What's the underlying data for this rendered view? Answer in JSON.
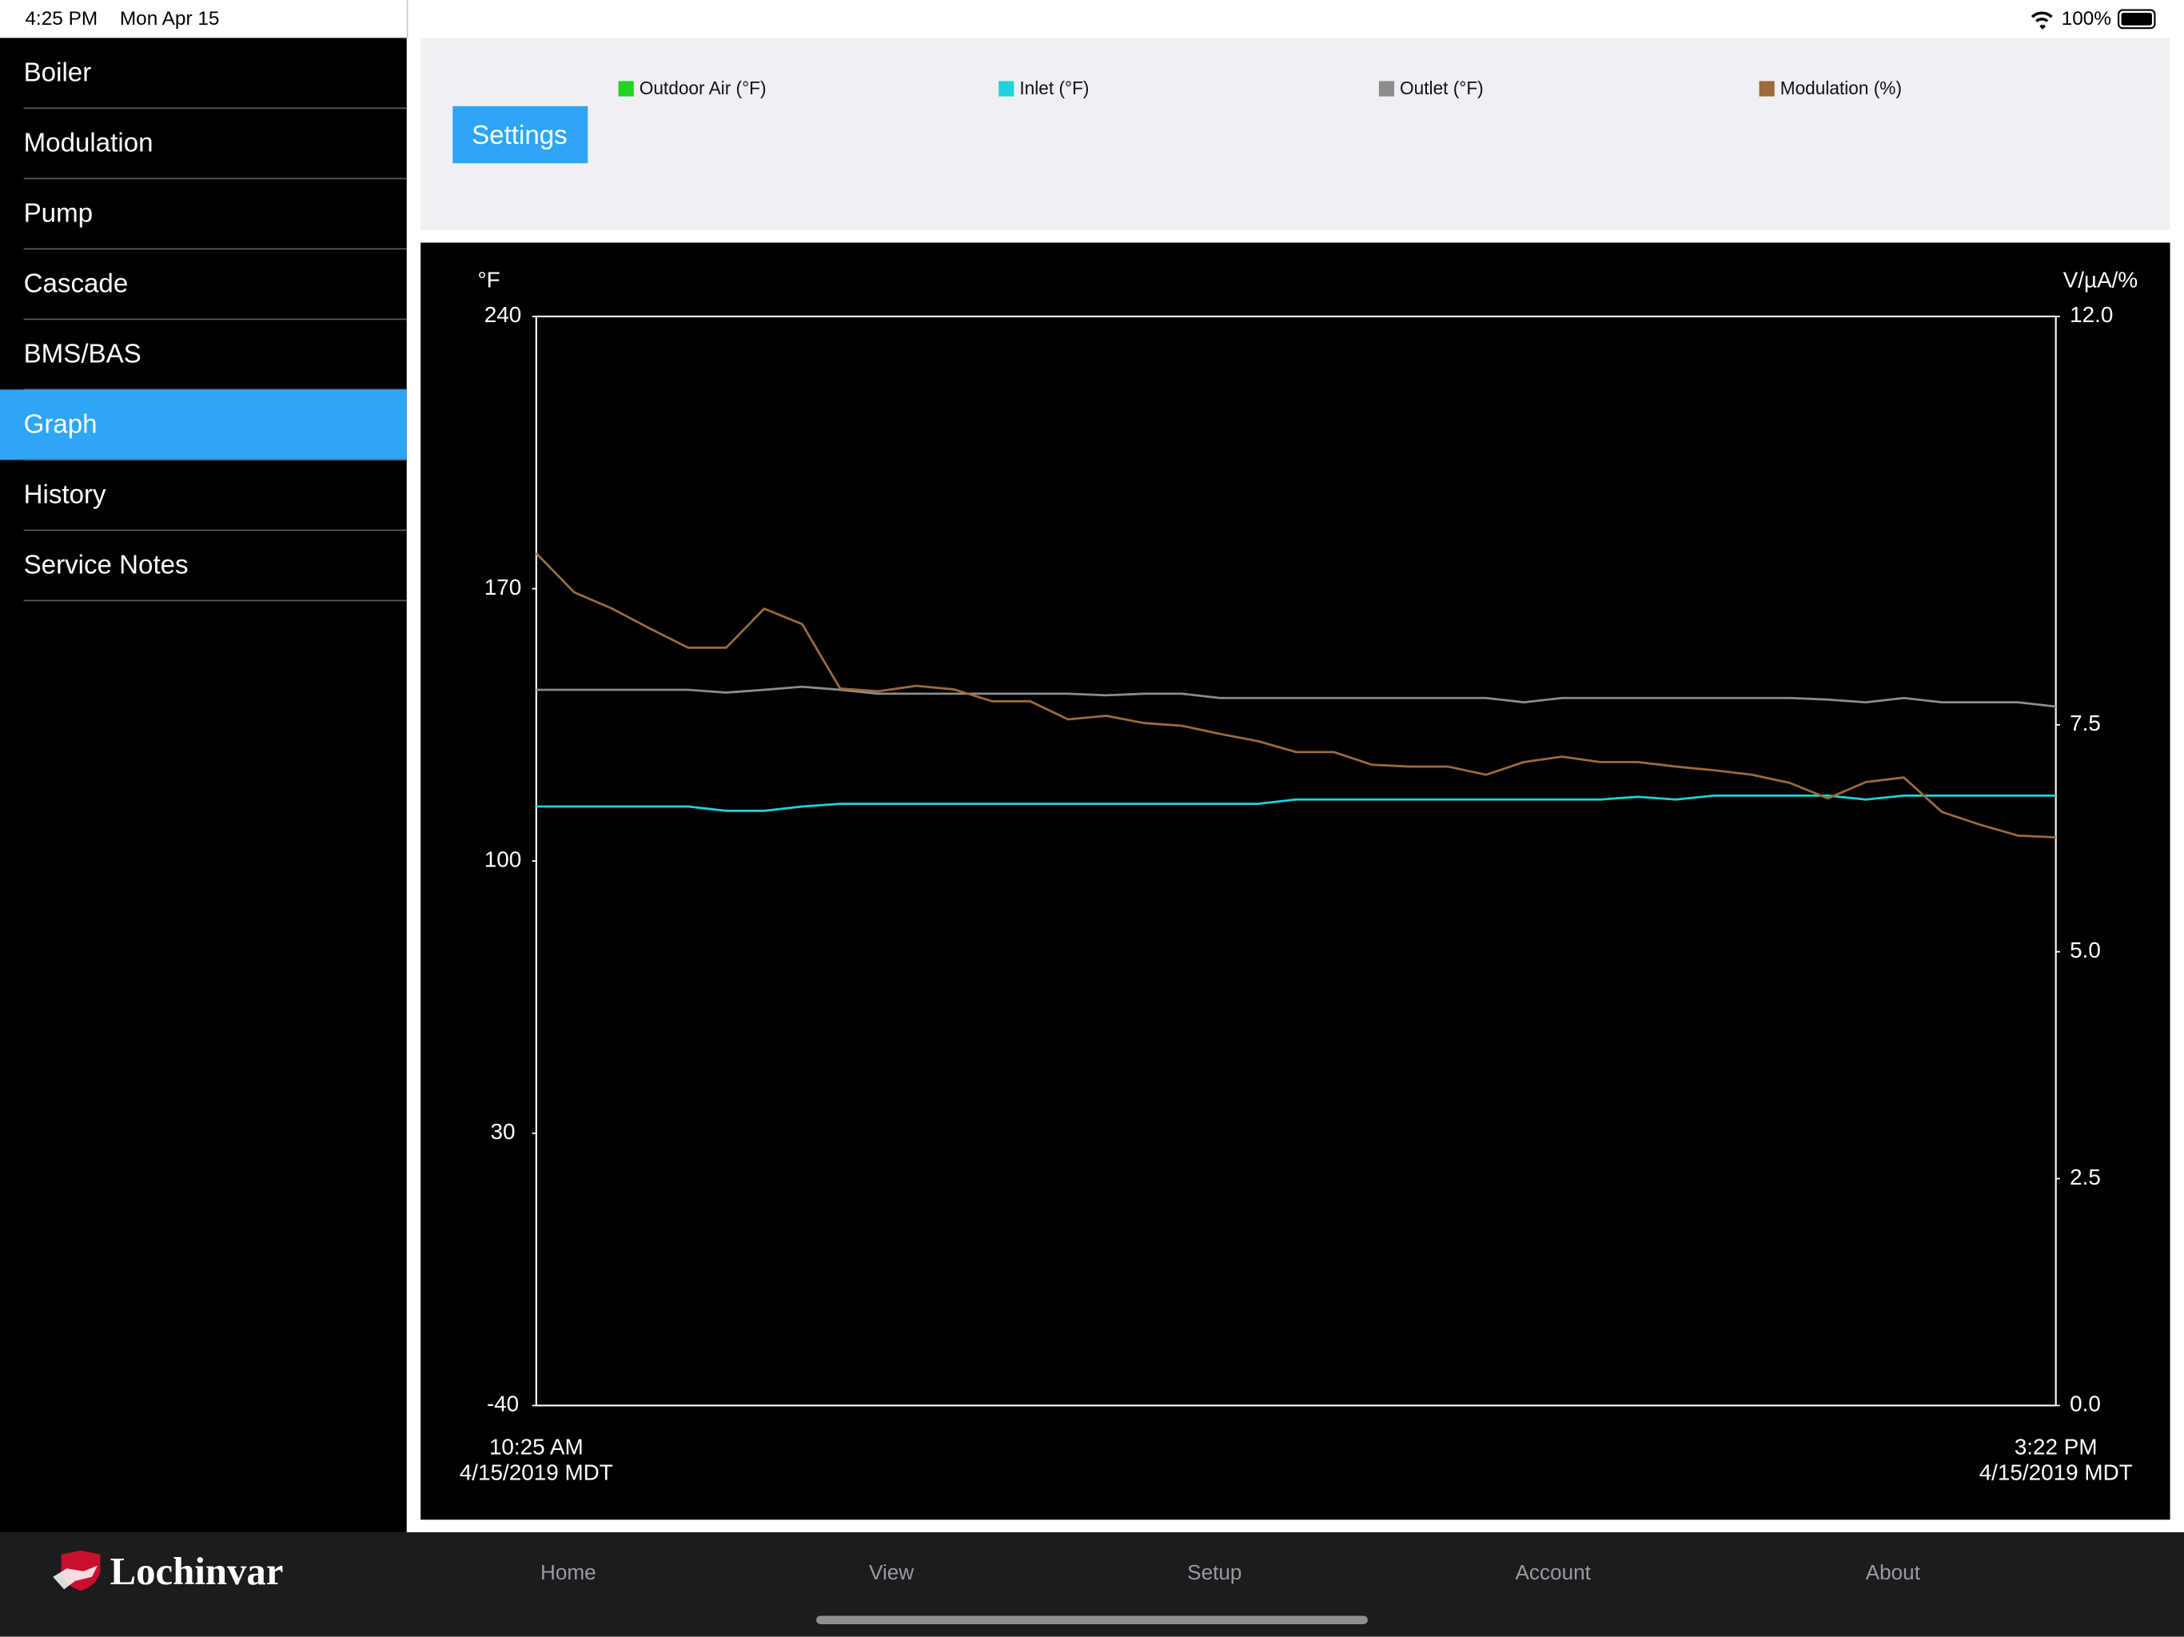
{
  "status_bar": {
    "time": "4:25 PM",
    "date": "Mon Apr 15",
    "battery": "100%"
  },
  "sidebar": {
    "items": [
      "Boiler",
      "Modulation",
      "Pump",
      "Cascade",
      "BMS/BAS",
      "Graph",
      "History",
      "Service Notes"
    ]
  },
  "settings_button": "Settings",
  "chart_data": {
    "type": "line",
    "y_label": "°F",
    "y2_label": "V/µA/%",
    "categories": [
      "10:25 AM\n4/15/2019 MDT",
      null,
      null,
      null,
      null,
      null,
      null,
      null,
      null,
      null,
      null,
      null,
      null,
      null,
      null,
      null,
      null,
      null,
      null,
      null,
      null,
      null,
      null,
      null,
      null,
      null,
      null,
      null,
      null,
      null,
      null,
      null,
      null,
      null,
      null,
      null,
      null,
      null,
      null,
      null,
      "3:22 PM\n4/15/2019 MDT"
    ],
    "ylim": [
      -40,
      240
    ],
    "yticks": [
      240,
      170,
      100,
      30,
      -40
    ],
    "y2lim": [
      0,
      12
    ],
    "y2ticks": [
      {
        "value": 12,
        "label": "12.0"
      },
      7.5,
      {
        "value": 5,
        "label": "5.0"
      },
      2.5,
      {
        "value": 0,
        "label": "0.0"
      }
    ],
    "series": [
      {
        "name": "Outdoor Air (°F)",
        "color": "#22d422",
        "values": [
          null,
          null,
          null,
          null,
          null,
          null,
          null,
          null,
          null,
          null,
          null,
          null,
          null,
          null,
          null,
          null,
          null,
          null,
          null,
          null,
          null,
          null,
          null,
          null,
          null,
          null,
          null,
          null,
          null,
          null,
          null,
          null,
          null,
          null,
          null,
          null,
          null,
          null,
          null,
          null,
          null
        ]
      },
      {
        "name": "Inlet (°F)",
        "color": "#1fd3dc",
        "values": [
          114.0,
          114.0,
          114.0,
          114.0,
          114.0,
          112.9,
          112.9,
          114.0,
          114.7,
          114.7,
          114.7,
          114.7,
          114.7,
          114.7,
          114.7,
          114.7,
          114.7,
          114.7,
          114.7,
          114.7,
          115.8,
          115.8,
          115.8,
          115.8,
          115.8,
          115.8,
          115.8,
          115.8,
          115.8,
          116.5,
          115.8,
          116.8,
          116.8,
          116.8,
          116.8,
          115.8,
          116.8,
          116.8,
          116.8,
          116.8,
          116.8
        ]
      },
      {
        "name": "Outlet (°F)",
        "color": "#8c8c8c",
        "values": [
          144.0,
          144.0,
          144.0,
          144.0,
          144.0,
          143.3,
          144.0,
          144.8,
          144.0,
          143.0,
          143.0,
          143.0,
          143.0,
          143.0,
          143.0,
          142.6,
          143.0,
          143.0,
          141.9,
          141.9,
          141.9,
          141.9,
          141.9,
          141.9,
          141.9,
          141.9,
          140.8,
          141.9,
          141.9,
          141.9,
          141.9,
          141.9,
          141.9,
          141.9,
          141.5,
          140.8,
          141.9,
          140.8,
          140.8,
          140.8,
          139.7
        ]
      },
      {
        "name": "Modulation (%)",
        "color": "#9c6a3c",
        "axis": "y2",
        "values": [
          9.39,
          8.96,
          8.78,
          8.56,
          8.35,
          8.35,
          8.78,
          8.61,
          7.9,
          7.87,
          7.93,
          7.89,
          7.76,
          7.76,
          7.56,
          7.6,
          7.52,
          7.49,
          7.4,
          7.32,
          7.2,
          7.2,
          7.06,
          7.04,
          7.04,
          6.95,
          7.09,
          7.15,
          7.09,
          7.09,
          7.04,
          7.0,
          6.95,
          6.86,
          6.69,
          6.87,
          6.92,
          6.54,
          6.4,
          6.28,
          6.26
        ]
      }
    ]
  },
  "tab_bar": {
    "brand": "Lochinvar",
    "tabs": [
      "Home",
      "View",
      "Setup",
      "Account",
      "About"
    ]
  }
}
